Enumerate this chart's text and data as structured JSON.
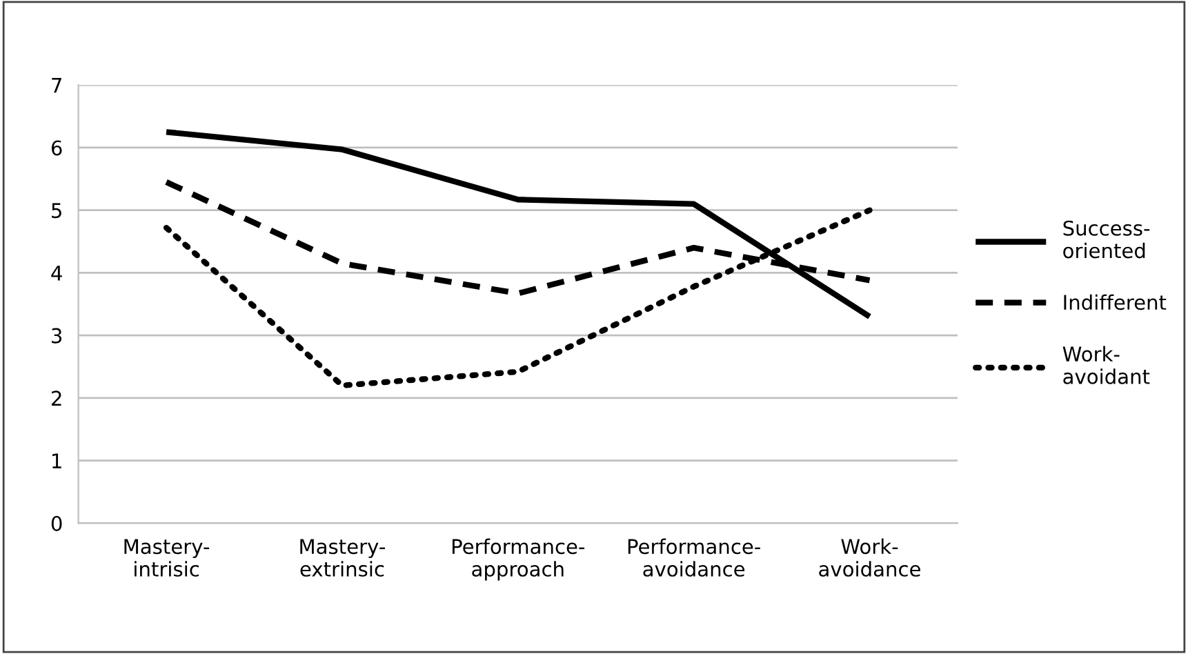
{
  "chart_data": {
    "type": "line",
    "categories": [
      "Mastery-\nintrisic",
      "Mastery-\nextrinsic",
      "Performance-\napproach",
      "Performance-\navoidance",
      "Work-\navoidance"
    ],
    "series": [
      {
        "name": "Success-\noriented",
        "color": "#000000",
        "line_style": "solid",
        "values": [
          6.25,
          5.97,
          5.17,
          5.1,
          3.3
        ]
      },
      {
        "name": "Indifferent",
        "color": "#000000",
        "line_style": "dashed",
        "values": [
          5.45,
          4.15,
          3.67,
          4.4,
          3.88
        ]
      },
      {
        "name": "Work-\navoidant",
        "color": "#000000",
        "line_style": "dotted",
        "values": [
          4.72,
          2.2,
          2.42,
          3.78,
          5.0
        ]
      }
    ],
    "ylim": [
      0,
      7
    ],
    "yticks": [
      0,
      1,
      2,
      3,
      4,
      5,
      6,
      7
    ],
    "grid": "y",
    "legend": "right"
  }
}
